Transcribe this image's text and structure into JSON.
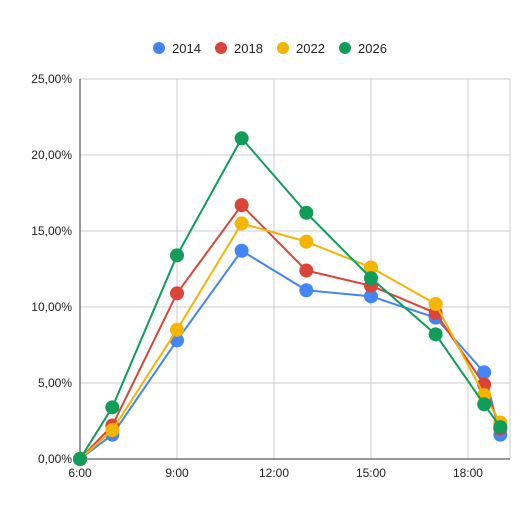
{
  "chart_data": {
    "type": "line",
    "title": "",
    "xlabel": "",
    "ylabel": "",
    "x": [
      6,
      7,
      9,
      11,
      13,
      15,
      17,
      18.5,
      19
    ],
    "x_unit": "hour",
    "xlim": [
      6,
      19.3
    ],
    "x_ticks": [
      6,
      9,
      12,
      15,
      18
    ],
    "x_tick_labels": [
      "6:00",
      "9:00",
      "12:00",
      "15:00",
      "18:00"
    ],
    "ylim": [
      0,
      25
    ],
    "y_ticks": [
      0,
      5,
      10,
      15,
      20,
      25
    ],
    "y_tick_labels": [
      "0,00%",
      "5,00%",
      "10,00%",
      "15,00%",
      "20,00%",
      "25,00%"
    ],
    "grid": true,
    "legend_position": "top",
    "series": [
      {
        "name": "2014",
        "color": "#4285f4",
        "values": [
          0,
          1.6,
          7.8,
          13.7,
          11.1,
          10.7,
          9.3,
          5.7,
          1.6
        ]
      },
      {
        "name": "2018",
        "color": "#db4437",
        "values": [
          0,
          2.2,
          10.9,
          16.7,
          12.4,
          11.4,
          9.6,
          4.9,
          2.0
        ]
      },
      {
        "name": "2022",
        "color": "#f4b400",
        "values": [
          0,
          1.9,
          8.5,
          15.5,
          14.3,
          12.6,
          10.2,
          4.2,
          2.4
        ]
      },
      {
        "name": "2026",
        "color": "#0f9d58",
        "values": [
          0,
          3.4,
          13.4,
          21.1,
          16.2,
          11.9,
          8.2,
          3.6,
          2.1
        ]
      }
    ]
  }
}
